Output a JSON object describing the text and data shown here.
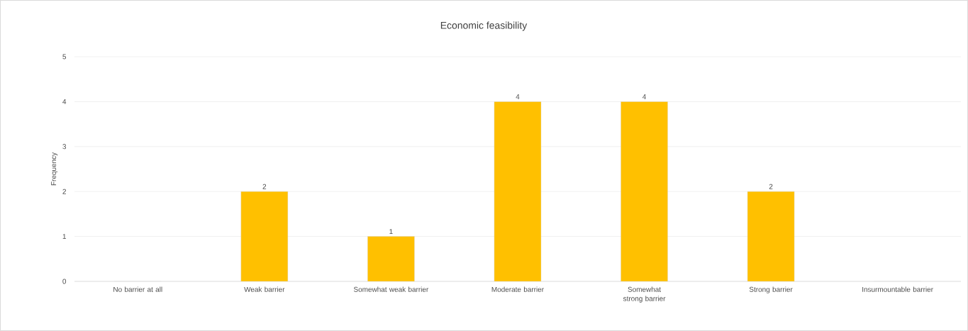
{
  "chart_data": {
    "type": "bar",
    "title": "Economic feasibility",
    "ylabel": "Frequency",
    "categories": [
      "No barrier at all",
      "Weak barrier",
      "Somewhat weak barrier",
      "Moderate barrier",
      "Somewhat strong barrier",
      "Strong barrier",
      "Insurmountable barrier"
    ],
    "values": [
      0,
      2,
      1,
      4,
      4,
      2,
      0
    ],
    "value_labels": [
      null,
      "2",
      "1",
      "4",
      "4",
      "2",
      null
    ],
    "color": "#ffc000",
    "ylim": [
      0,
      5
    ],
    "yticks": [
      0,
      1,
      2,
      3,
      4,
      5
    ],
    "grid": "y"
  }
}
